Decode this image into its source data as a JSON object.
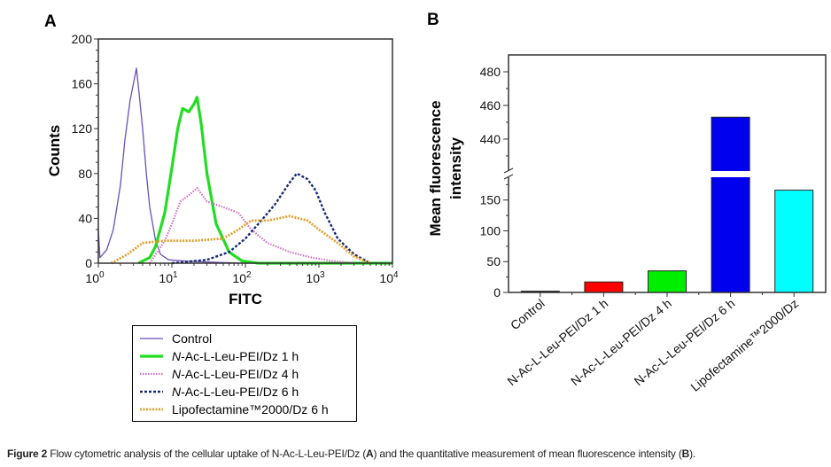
{
  "caption": {
    "figure_label": "Figure 2",
    "text_before": " Flow cytometric analysis of the cellular uptake of N-Ac-L-Leu-PEI/Dz (",
    "a": "A",
    "text_mid": ") and the quantitative measurement of mean fluorescence intensity (",
    "b": "B",
    "text_end": ")."
  },
  "chart_data": [
    {
      "panel": "A",
      "type": "line",
      "xlabel": "FITC",
      "ylabel": "Counts",
      "xscale": "log",
      "xlim": [
        1,
        10000
      ],
      "ylim": [
        0,
        200
      ],
      "x_ticks": [
        {
          "base": "10",
          "exp": "0"
        },
        {
          "base": "10",
          "exp": "1"
        },
        {
          "base": "10",
          "exp": "2"
        },
        {
          "base": "10",
          "exp": "3"
        },
        {
          "base": "10",
          "exp": "4"
        }
      ],
      "y_ticks": [
        "0",
        "40",
        "80",
        "120",
        "160",
        "200"
      ],
      "legend_placement": "below",
      "series": [
        {
          "name": "Control",
          "color": "#6a50b8",
          "style": "solid-thin",
          "points": [
            [
              1,
              30
            ],
            [
              1.05,
              5
            ],
            [
              1.3,
              12
            ],
            [
              1.6,
              30
            ],
            [
              2,
              70
            ],
            [
              2.3,
              110
            ],
            [
              2.7,
              145
            ],
            [
              3.1,
              165
            ],
            [
              3.3,
              174
            ],
            [
              3.6,
              150
            ],
            [
              4,
              120
            ],
            [
              4.5,
              80
            ],
            [
              5,
              50
            ],
            [
              6,
              20
            ],
            [
              7,
              8
            ],
            [
              9,
              3
            ],
            [
              15,
              2
            ],
            [
              30,
              1
            ],
            [
              100,
              0
            ],
            [
              10000,
              0
            ]
          ]
        },
        {
          "name": "N-Ac-L-Leu-PEI/Dz 1 h",
          "color": "#22dd22",
          "style": "solid-thick",
          "points": [
            [
              3.5,
              0
            ],
            [
              5,
              5
            ],
            [
              6,
              15
            ],
            [
              8,
              45
            ],
            [
              10,
              85
            ],
            [
              12,
              120
            ],
            [
              14,
              138
            ],
            [
              17,
              135
            ],
            [
              20,
              142
            ],
            [
              22,
              148
            ],
            [
              25,
              125
            ],
            [
              30,
              80
            ],
            [
              40,
              35
            ],
            [
              60,
              10
            ],
            [
              90,
              2
            ],
            [
              150,
              0
            ],
            [
              10000,
              0
            ]
          ]
        },
        {
          "name": "N-Ac-L-Leu-PEI/Dz 4 h",
          "color": "#d070c0",
          "style": "dotted",
          "points": [
            [
              5,
              0
            ],
            [
              8,
              20
            ],
            [
              10,
              35
            ],
            [
              13,
              55
            ],
            [
              18,
              62
            ],
            [
              22,
              67
            ],
            [
              30,
              55
            ],
            [
              50,
              50
            ],
            [
              80,
              45
            ],
            [
              120,
              30
            ],
            [
              200,
              18
            ],
            [
              400,
              10
            ],
            [
              800,
              5
            ],
            [
              1500,
              2
            ],
            [
              3000,
              0
            ]
          ]
        },
        {
          "name": "N-Ac-L-Leu-PEI/Dz 6 h",
          "color": "#1a2a7a",
          "style": "dashed",
          "points": [
            [
              10,
              0
            ],
            [
              30,
              3
            ],
            [
              60,
              10
            ],
            [
              100,
              22
            ],
            [
              150,
              35
            ],
            [
              250,
              52
            ],
            [
              400,
              72
            ],
            [
              500,
              80
            ],
            [
              700,
              75
            ],
            [
              900,
              65
            ],
            [
              1200,
              45
            ],
            [
              1800,
              22
            ],
            [
              3000,
              8
            ],
            [
              5000,
              0
            ]
          ]
        },
        {
          "name": "Lipofectamine™2000/Dz 6 h",
          "color": "#e0a030",
          "style": "dotted-thick",
          "points": [
            [
              1.5,
              0
            ],
            [
              2.5,
              8
            ],
            [
              4,
              18
            ],
            [
              8,
              20
            ],
            [
              20,
              20
            ],
            [
              50,
              22
            ],
            [
              80,
              30
            ],
            [
              120,
              38
            ],
            [
              200,
              38
            ],
            [
              400,
              42
            ],
            [
              700,
              38
            ],
            [
              1000,
              30
            ],
            [
              1800,
              18
            ],
            [
              3000,
              6
            ],
            [
              5000,
              0
            ]
          ]
        }
      ],
      "legend": [
        {
          "prefix": "",
          "italic": "",
          "text": "Control"
        },
        {
          "prefix": "",
          "italic": "N",
          "text": "-Ac-L-Leu-PEI/Dz 1 h"
        },
        {
          "prefix": "",
          "italic": "N",
          "text": "-Ac-L-Leu-PEI/Dz 4 h"
        },
        {
          "prefix": "",
          "italic": "N",
          "text": "-Ac-L-Leu-PEI/Dz 6 h"
        },
        {
          "prefix": "",
          "italic": "",
          "text": "Lipofectamine™2000/Dz 6 h"
        }
      ]
    },
    {
      "panel": "B",
      "type": "bar",
      "ylabel_line1": "Mean fluorescence",
      "ylabel_line2": "intensity",
      "xlabel": "",
      "axis_break": {
        "lower": [
          0,
          187
        ],
        "upper": [
          421,
          490
        ]
      },
      "y_ticks_lower": [
        "0",
        "50",
        "100",
        "150"
      ],
      "y_ticks_upper": [
        "440",
        "460",
        "480"
      ],
      "categories": [
        "Control",
        "N-Ac-L-Leu-PEI/Dz 1 h",
        "N-Ac-L-Leu-PEI/Dz 4 h",
        "N-Ac-L-Leu-PEI/Dz 6 h",
        "Lipofectamine™2000/Dz"
      ],
      "values": [
        2,
        17,
        35,
        453,
        166
      ],
      "colors": [
        "#000000",
        "#ff0000",
        "#00ee00",
        "#0000ee",
        "#00ffff"
      ]
    }
  ]
}
